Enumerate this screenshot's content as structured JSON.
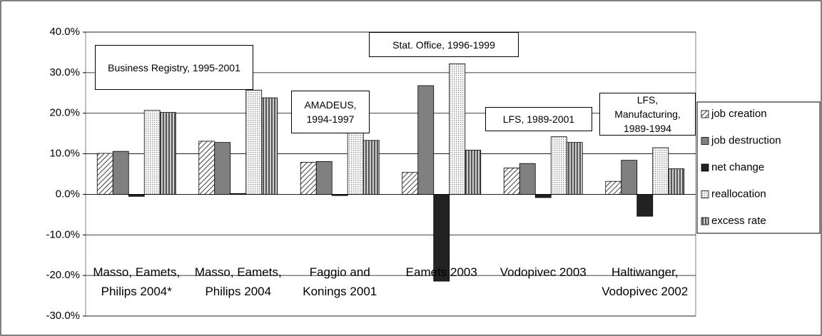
{
  "chart_data": {
    "type": "bar",
    "categories": [
      "Masso, Eamets, Philips 2004*",
      "Masso, Eamets, Philips 2004",
      "Faggio and Konings 2001",
      "Eamets 2003",
      "Vodopivec 2003",
      "Haltiwanger, Vodopivec 2002"
    ],
    "series": [
      {
        "name": "job creation",
        "color": "#000000",
        "pattern": "diagonal",
        "values": [
          10.1,
          13.1,
          7.9,
          5.4,
          6.5,
          3.2
        ]
      },
      {
        "name": "job destruction",
        "color": "#808080",
        "pattern": "solid",
        "values": [
          10.6,
          12.8,
          8.1,
          26.8,
          7.6,
          8.4
        ]
      },
      {
        "name": "net change",
        "color": "#222222",
        "pattern": "solid",
        "values": [
          -0.5,
          0.2,
          -0.3,
          -21.4,
          -0.8,
          -5.4
        ]
      },
      {
        "name": "reallocation",
        "color": "#999999",
        "pattern": "dots",
        "values": [
          20.7,
          25.7,
          16.1,
          32.2,
          14.2,
          11.5
        ]
      },
      {
        "name": "excess rate",
        "color": "#555555",
        "pattern": "vertical",
        "values": [
          20.2,
          23.8,
          13.3,
          10.9,
          12.8,
          6.3
        ]
      }
    ],
    "annotations": [
      "Business Registry, 1995-2001",
      "AMADEUS, 1994-1997",
      "Stat. Office, 1996-1999",
      "LFS, 1989-2001",
      "LFS, Manufacturing, 1989-1994"
    ],
    "ylim": [
      -30,
      40
    ],
    "yticks": [
      {
        "value": -30,
        "label": "-30.0%"
      },
      {
        "value": -20,
        "label": "-20.0%"
      },
      {
        "value": -10,
        "label": "-10.0%"
      },
      {
        "value": 0,
        "label": "0.0%"
      },
      {
        "value": 10,
        "label": "10.0%"
      },
      {
        "value": 20,
        "label": "20.0%"
      },
      {
        "value": 30,
        "label": "30.0%"
      },
      {
        "value": 40,
        "label": "40.0%"
      }
    ],
    "grid": true,
    "legend": "right"
  }
}
